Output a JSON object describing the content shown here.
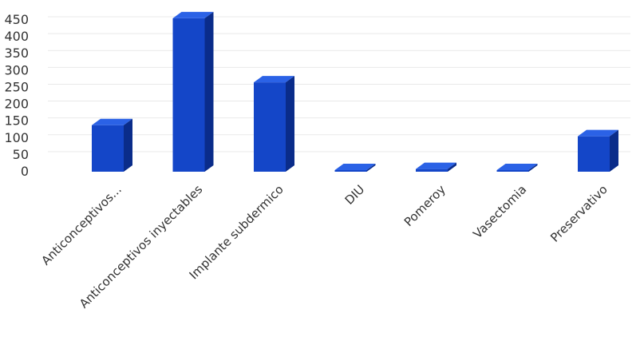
{
  "chart_data": {
    "type": "bar",
    "categories": [
      "Anticonceptivos...",
      "Anticonceptivos inyectables",
      "Implante subdermico",
      "DIU",
      "Pomeroy",
      "Vasectomia",
      "Preservativo"
    ],
    "values": [
      138,
      455,
      265,
      2,
      8,
      2,
      105
    ],
    "ylim": [
      0,
      450
    ],
    "y_ticks": [
      "0",
      "50",
      "100",
      "150",
      "200",
      "250",
      "300",
      "350",
      "400",
      "450"
    ],
    "grid": true,
    "style": "3d-column",
    "colors": {
      "front": "#1446c8",
      "top": "#2b62e6",
      "side": "#0a2c8a"
    }
  }
}
